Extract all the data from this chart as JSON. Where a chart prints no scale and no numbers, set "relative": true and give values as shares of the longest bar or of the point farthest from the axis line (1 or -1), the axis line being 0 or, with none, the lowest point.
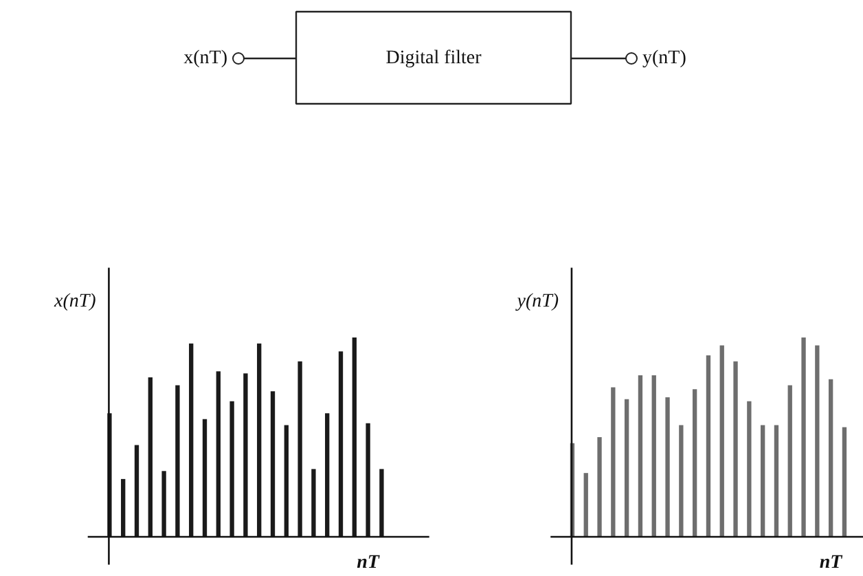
{
  "chart_data": [
    {
      "type": "other",
      "annotations": [
        "x(nT)",
        "Digital filter",
        "y(nT)"
      ]
    },
    {
      "type": "bar",
      "relative": true,
      "ylabel": "x(nT)",
      "xlabel": "nT",
      "color": "#1a1a1a",
      "categories": [
        null,
        null,
        null,
        null,
        null,
        null,
        null,
        null,
        null,
        null,
        null,
        null,
        null,
        null,
        null,
        null,
        null,
        null,
        null,
        null,
        null
      ],
      "values": [
        0.62,
        0.29,
        0.46,
        0.8,
        0.33,
        0.76,
        0.97,
        0.59,
        0.83,
        0.68,
        0.82,
        0.97,
        0.73,
        0.56,
        0.88,
        0.34,
        0.62,
        0.93,
        1,
        0.57,
        0.34
      ]
    },
    {
      "type": "bar",
      "relative": true,
      "ylabel": "y(nT)",
      "xlabel": "nT",
      "color": "#6e6e6e",
      "categories": [
        null,
        null,
        null,
        null,
        null,
        null,
        null,
        null,
        null,
        null,
        null,
        null,
        null,
        null,
        null,
        null,
        null,
        null,
        null,
        null,
        null
      ],
      "values": [
        0.47,
        0.32,
        0.5,
        0.75,
        0.69,
        0.81,
        0.81,
        0.7,
        0.56,
        0.74,
        0.91,
        0.96,
        0.88,
        0.68,
        0.56,
        0.56,
        0.76,
        1,
        0.96,
        0.79,
        0.55
      ]
    }
  ]
}
